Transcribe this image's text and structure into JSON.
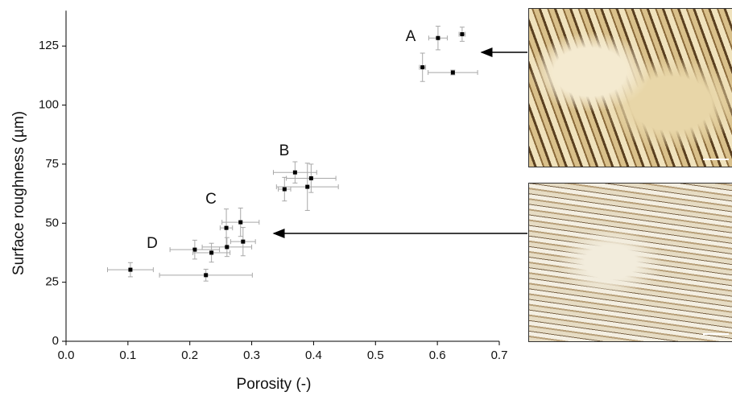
{
  "chart_data": {
    "type": "scatter",
    "x_label": "Porosity (-)",
    "y_label": "Surface roughness (µm)",
    "annotations": [
      "A",
      "B",
      "C",
      "D"
    ],
    "x": [
      0.601,
      0.64,
      0.576,
      0.625,
      0.37,
      0.396,
      0.353,
      0.39,
      0.282,
      0.259,
      0.286,
      0.26,
      0.208,
      0.235,
      0.104,
      0.226
    ],
    "values": [
      128.4,
      130,
      116,
      113.8,
      71.5,
      69,
      64.4,
      65.4,
      50.4,
      48,
      42.2,
      39.9,
      38.8,
      37.5,
      30.3,
      28
    ],
    "xerr": [
      0.015,
      0.005,
      0.005,
      0.04,
      0.035,
      0.04,
      0.01,
      0.05,
      0.03,
      0.01,
      0.02,
      0.04,
      0.04,
      0.03,
      0.037,
      0.075
    ],
    "yerr": [
      5,
      3,
      6,
      1,
      4.5,
      6,
      5,
      10,
      6,
      8,
      6,
      4,
      4,
      4,
      3,
      2.5
    ],
    "color": "#000000",
    "error_color": "#a8a8a8",
    "xlim": [
      0,
      0.7
    ],
    "ylim": [
      0,
      140
    ],
    "xticks": [
      {
        "value": 0,
        "label": "0.0"
      },
      0.1,
      0.2,
      0.3,
      0.4,
      0.5,
      0.6,
      0.7
    ],
    "yticks": [
      0,
      25,
      50,
      75,
      100,
      125
    ],
    "grid": false
  }
}
